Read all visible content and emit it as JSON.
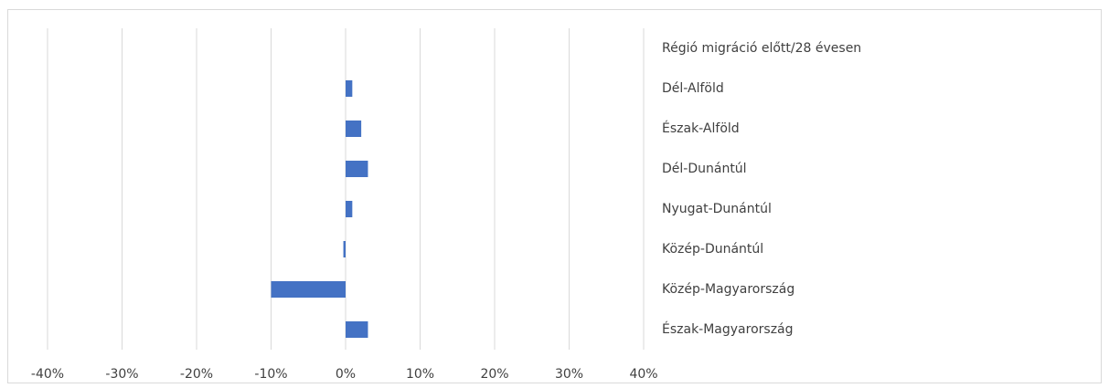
{
  "chart_data": {
    "type": "hbar",
    "categories": [
      "Régió migráció előtt/28 évesen",
      "Dél-Alföld",
      "Észak-Alföld",
      "Dél-Dunántúl",
      "Nyugat-Dunántúl",
      "Közép-Dunántúl",
      "Közép-Magyarország",
      "Észak-Magyarország"
    ],
    "values": [
      null,
      0.9,
      2.1,
      3.0,
      0.9,
      -0.3,
      -10.0,
      3.0
    ],
    "color": "#4472c4",
    "xlim": [
      -40,
      40
    ],
    "xticks": [
      {
        "value": -40,
        "label": "-40%"
      },
      {
        "value": -30,
        "label": "-30%"
      },
      {
        "value": -20,
        "label": "-20%"
      },
      {
        "value": -10,
        "label": "-10%"
      },
      {
        "value": 0,
        "label": "0%"
      },
      {
        "value": 10,
        "label": "10%"
      },
      {
        "value": 20,
        "label": "20%"
      },
      {
        "value": 30,
        "label": "30%"
      },
      {
        "value": 40,
        "label": "40%"
      }
    ],
    "grid": true
  }
}
